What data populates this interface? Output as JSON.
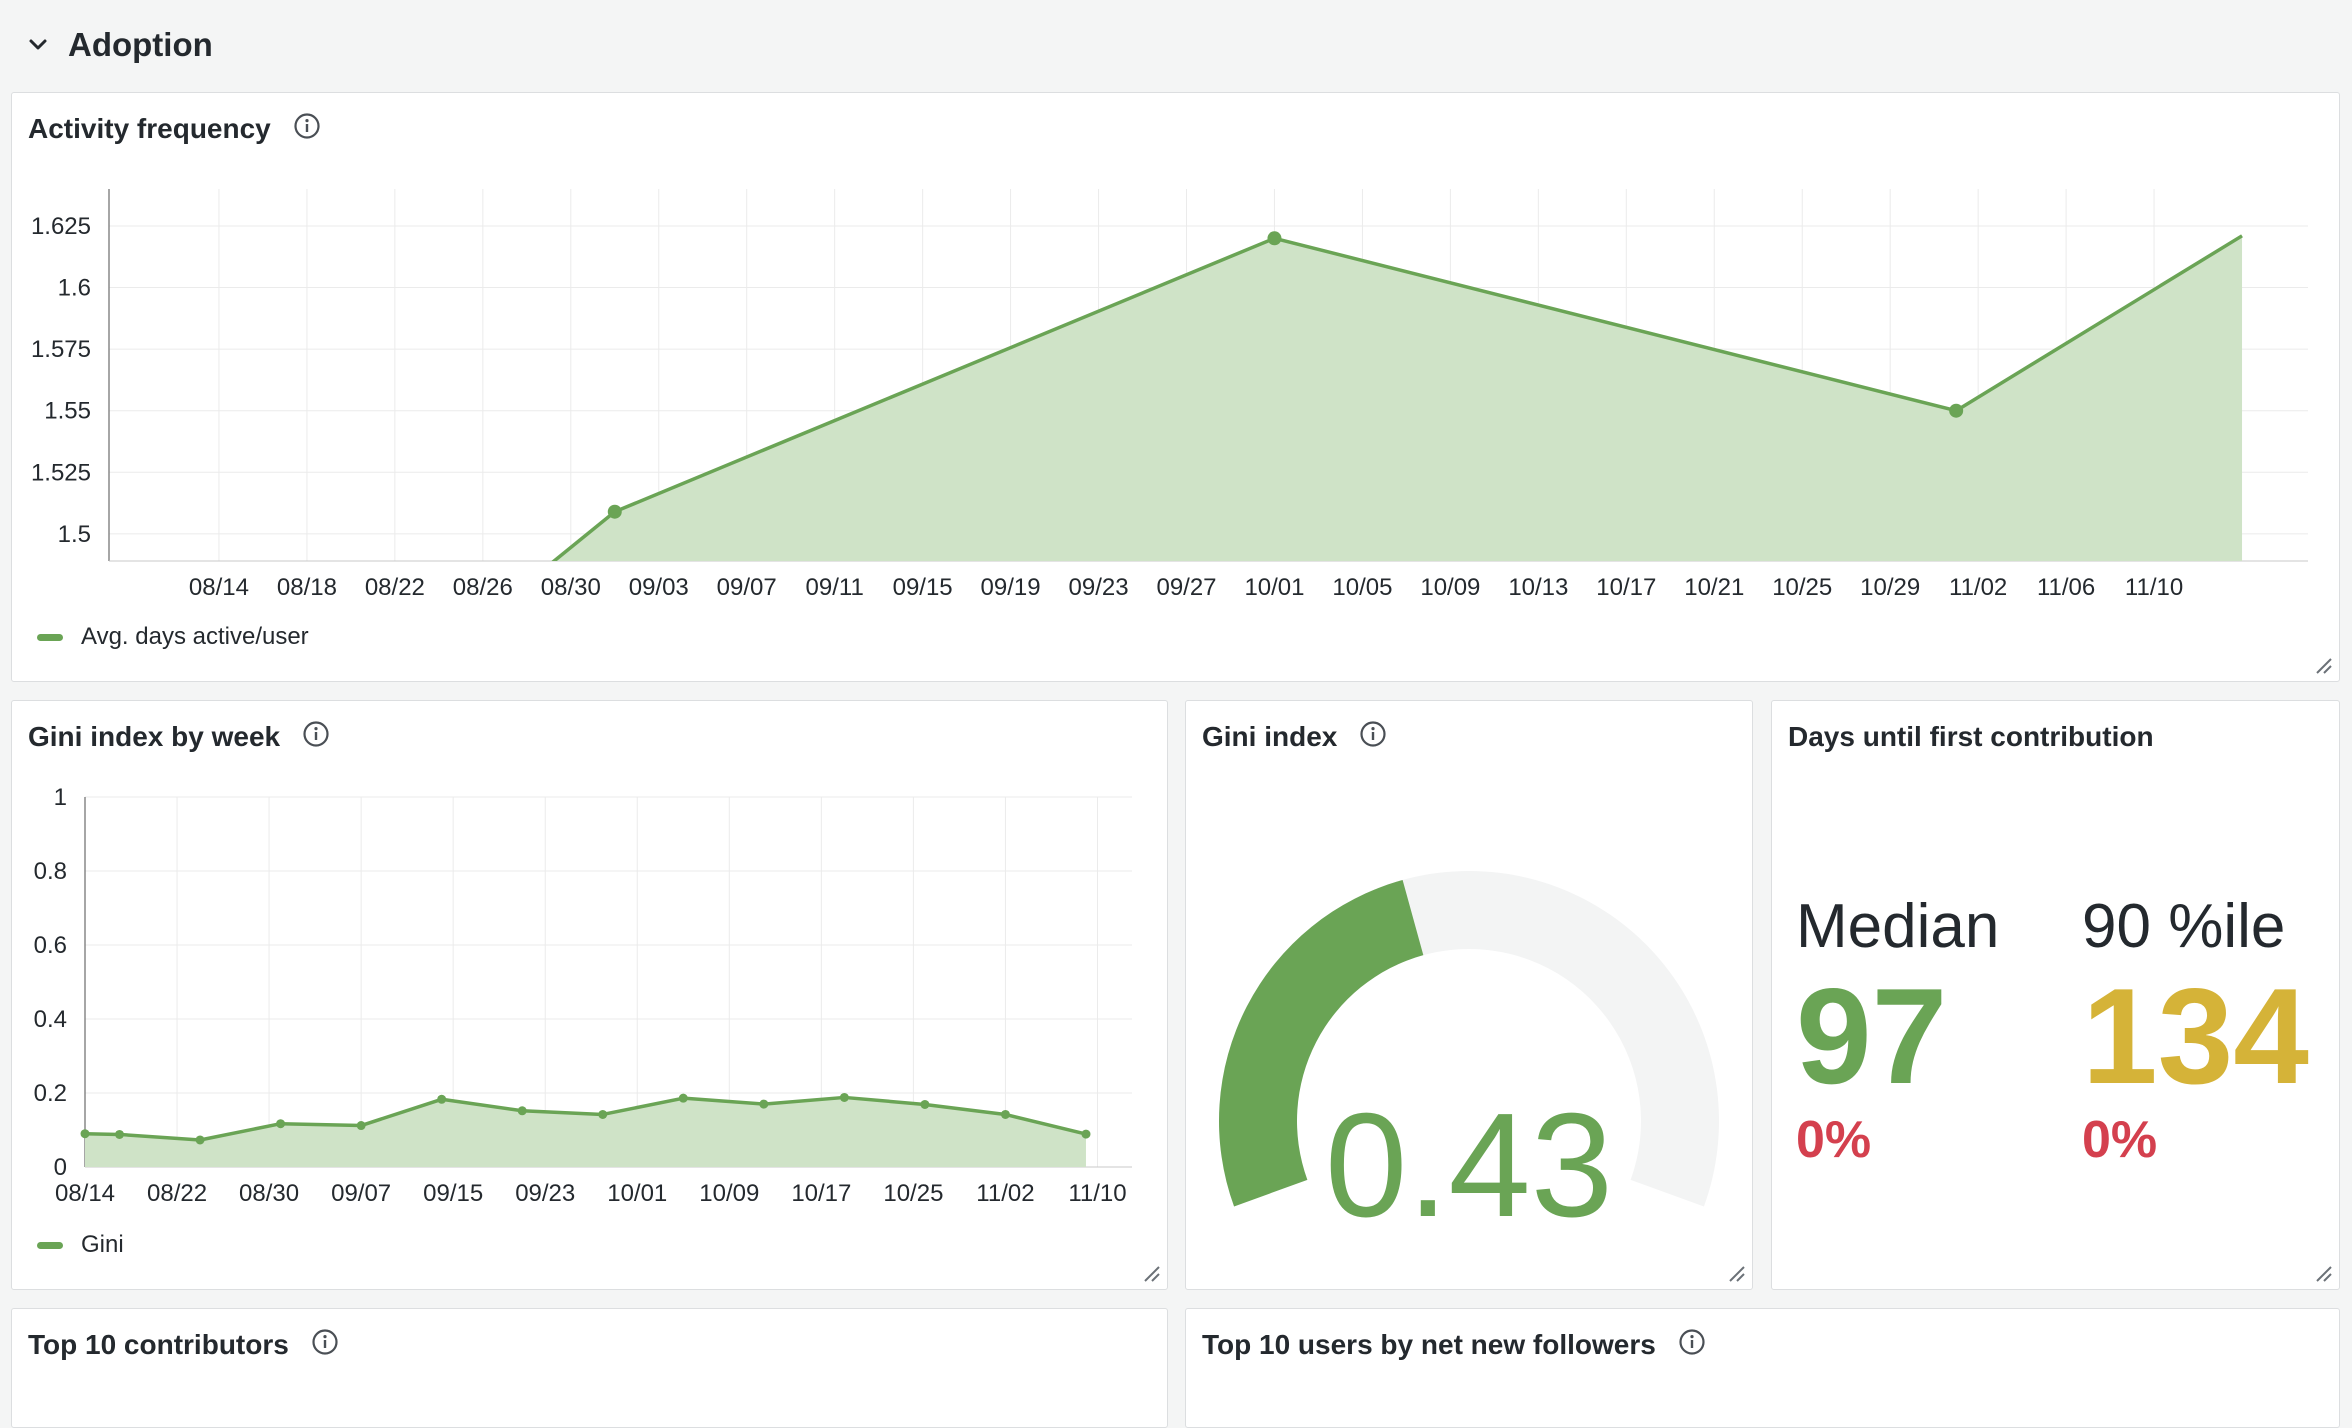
{
  "row": {
    "title": "Adoption"
  },
  "activity": {
    "title": "Activity frequency",
    "legend": "Avg. days active/user",
    "chart_data": {
      "type": "area",
      "series": [
        {
          "name": "Avg. days active/user",
          "points": [
            [
              "08/28",
              1.48
            ],
            [
              "09/01",
              1.509
            ],
            [
              "10/01",
              1.62
            ],
            [
              "11/01",
              1.55
            ],
            [
              "11/14",
              1.621
            ]
          ]
        }
      ],
      "marked_points": [
        [
          "09/01",
          1.509
        ],
        [
          "10/01",
          1.62
        ],
        [
          "11/01",
          1.55
        ]
      ],
      "x_ticks": [
        "08/14",
        "08/18",
        "08/22",
        "08/26",
        "08/30",
        "09/03",
        "09/07",
        "09/11",
        "09/15",
        "09/19",
        "09/23",
        "09/27",
        "10/01",
        "10/05",
        "10/09",
        "10/13",
        "10/17",
        "10/21",
        "10/25",
        "10/29",
        "11/02",
        "11/06",
        "11/10"
      ],
      "y_ticks": [
        "1.5",
        "1.525",
        "1.55",
        "1.575",
        "1.6",
        "1.625"
      ],
      "ylim": [
        1.489,
        1.64
      ],
      "grid": true,
      "legend_position": "bottom-left"
    }
  },
  "gini_week": {
    "title": "Gini index by week",
    "legend": "Gini",
    "chart_data": {
      "type": "area",
      "series": [
        {
          "name": "Gini",
          "points": [
            [
              "08/14",
              0.09
            ],
            [
              "08/17",
              0.088
            ],
            [
              "08/24",
              0.073
            ],
            [
              "08/31",
              0.117
            ],
            [
              "09/07",
              0.112
            ],
            [
              "09/14",
              0.183
            ],
            [
              "09/21",
              0.152
            ],
            [
              "09/28",
              0.142
            ],
            [
              "10/05",
              0.186
            ],
            [
              "10/12",
              0.17
            ],
            [
              "10/19",
              0.188
            ],
            [
              "10/26",
              0.169
            ],
            [
              "11/02",
              0.142
            ],
            [
              "11/09",
              0.089
            ]
          ]
        }
      ],
      "x_ticks": [
        "08/14",
        "08/22",
        "08/30",
        "09/07",
        "09/15",
        "09/23",
        "10/01",
        "10/09",
        "10/17",
        "10/25",
        "11/02",
        "11/10"
      ],
      "y_ticks": [
        "0",
        "0.2",
        "0.4",
        "0.6",
        "0.8",
        "1"
      ],
      "ylim": [
        0,
        1
      ],
      "grid": true,
      "legend_position": "bottom-left"
    }
  },
  "gini": {
    "title": "Gini index",
    "value": "0.43",
    "chart_data": {
      "type": "gauge",
      "value": 0.43,
      "min": 0,
      "max": 1
    }
  },
  "days": {
    "title": "Days until first contribution",
    "median": {
      "label": "Median",
      "value": "97",
      "delta": "0%",
      "color": "#6aa455"
    },
    "p90": {
      "label": "90 %ile",
      "value": "134",
      "delta": "0%",
      "color": "#d5b338"
    }
  },
  "top_contributors": {
    "title": "Top 10 contributors"
  },
  "top_followers": {
    "title": "Top 10 users by net new followers"
  },
  "colors": {
    "green": "#6aa455",
    "fill": "#cfe3c7",
    "grid": "#ebebeb",
    "red": "#d4404e",
    "yellow": "#d5b338"
  },
  "icons": {
    "info": "info-circle-icon",
    "chevron": "chevron-down-icon",
    "resize": "resize-handle-icon"
  }
}
